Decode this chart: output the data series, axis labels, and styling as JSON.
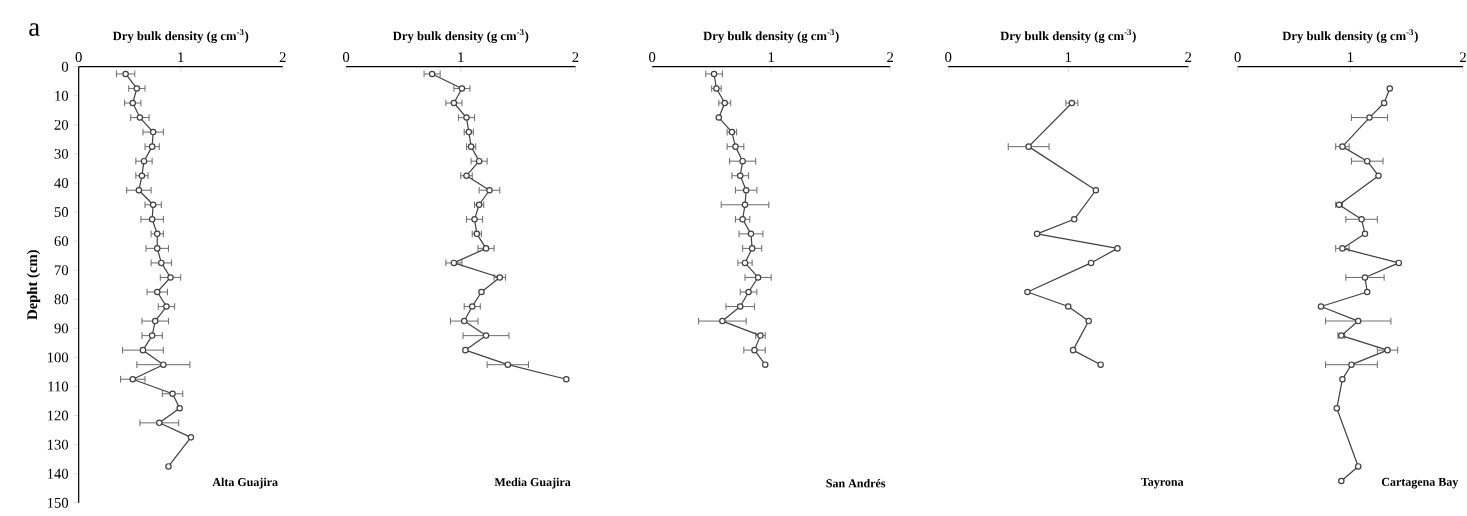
{
  "chart_data": [
    {
      "type": "line",
      "title": "a",
      "xlabel": "Dry bulk density (g cm$^{-3}$)",
      "ylabel": "Depht (cm)",
      "annotations": [
        "Alta Guajira"
      ],
      "xlim": [
        0,
        2
      ],
      "xticks": [
        0,
        1,
        2
      ],
      "ylim": [
        150,
        0
      ],
      "yticks": [
        0,
        10,
        20,
        30,
        40,
        50,
        60,
        70,
        80,
        90,
        100,
        110,
        120,
        130,
        140,
        150
      ],
      "marker": "circle",
      "series": [
        {
          "color": "#404040",
          "x": [
            0.46,
            0.57,
            0.53,
            0.6,
            0.73,
            0.72,
            0.64,
            0.62,
            0.59,
            0.73,
            0.72,
            0.77,
            0.77,
            0.81,
            0.9,
            0.77,
            0.86,
            0.75,
            0.72,
            0.63,
            0.83,
            0.53,
            0.92,
            0.99,
            0.79,
            1.1,
            0.88
          ],
          "values": [
            2.5,
            7.5,
            12.5,
            17.5,
            22.5,
            27.5,
            32.5,
            37.5,
            42.5,
            47.5,
            52.5,
            57.5,
            62.5,
            67.5,
            72.5,
            77.5,
            82.5,
            87.5,
            92.5,
            97.5,
            102.5,
            107.5,
            112.5,
            117.5,
            122.5,
            127.5,
            137.5
          ],
          "xerrors": [
            0.09,
            0.08,
            0.08,
            0.09,
            0.1,
            0.07,
            0.08,
            0.06,
            0.12,
            0.08,
            0.11,
            0.06,
            0.11,
            0.1,
            0.1,
            0.1,
            0.08,
            0.13,
            0.1,
            0.2,
            0.26,
            0.12,
            0.1,
            null,
            0.19,
            null,
            null
          ]
        }
      ]
    },
    {
      "type": "line",
      "xlabel": "Dry bulk density (g cm$^{-3}$)",
      "annotations": [
        "Media Guajira"
      ],
      "xlim": [
        0,
        2
      ],
      "xticks": [
        0,
        1,
        2
      ],
      "ylim": [
        150,
        0
      ],
      "tick_labels": "x",
      "marker": "circle",
      "series": [
        {
          "color": "#404040",
          "x": [
            0.75,
            1.01,
            0.94,
            1.05,
            1.07,
            1.09,
            1.16,
            1.05,
            1.25,
            1.16,
            1.12,
            1.14,
            1.22,
            0.94,
            1.34,
            1.18,
            1.1,
            1.03,
            1.22,
            1.04,
            1.41,
            1.92
          ],
          "values": [
            2.5,
            7.5,
            12.5,
            17.5,
            22.5,
            27.5,
            32.5,
            37.5,
            42.5,
            47.5,
            52.5,
            57.5,
            62.5,
            67.5,
            72.5,
            77.5,
            82.5,
            87.5,
            92.5,
            97.5,
            102.5,
            107.5
          ],
          "xerrors": [
            0.07,
            0.07,
            0.07,
            0.07,
            0.04,
            0.04,
            0.07,
            0.05,
            0.09,
            0.04,
            0.07,
            0.04,
            0.07,
            0.07,
            0.05,
            null,
            0.07,
            0.12,
            0.2,
            null,
            0.18,
            null
          ]
        }
      ]
    },
    {
      "type": "line",
      "xlabel": "Dry bulk density (g cm$^{-3}$)",
      "annotations": [
        "San Andrés"
      ],
      "xlim": [
        0,
        2
      ],
      "xticks": [
        0,
        1,
        2
      ],
      "ylim": [
        150,
        0
      ],
      "tick_labels": "x",
      "marker": "circle",
      "series": [
        {
          "color": "#404040",
          "x": [
            0.52,
            0.54,
            0.61,
            0.56,
            0.67,
            0.7,
            0.76,
            0.74,
            0.79,
            0.78,
            0.76,
            0.83,
            0.84,
            0.78,
            0.89,
            0.81,
            0.74,
            0.59,
            0.91,
            0.86,
            0.95
          ],
          "values": [
            2.5,
            7.5,
            12.5,
            17.5,
            22.5,
            27.5,
            32.5,
            37.5,
            42.5,
            47.5,
            52.5,
            57.5,
            62.5,
            67.5,
            72.5,
            77.5,
            82.5,
            87.5,
            92.5,
            97.5,
            102.5
          ],
          "xerrors": [
            0.07,
            0.04,
            0.05,
            null,
            0.04,
            0.07,
            0.11,
            0.07,
            0.09,
            0.2,
            0.06,
            0.1,
            0.08,
            0.06,
            0.11,
            0.07,
            0.12,
            0.2,
            0.04,
            0.09,
            null
          ]
        }
      ]
    },
    {
      "type": "line",
      "xlabel": "Dry bulk density (g cm$^{-3}$)",
      "annotations": [
        "Tayrona"
      ],
      "xlim": [
        0,
        2
      ],
      "xticks": [
        0,
        1,
        2
      ],
      "ylim": [
        150,
        0
      ],
      "tick_labels": "x",
      "marker": "circle",
      "series": [
        {
          "color": "#404040",
          "x": [
            1.03,
            0.67,
            1.23,
            1.05,
            0.74,
            1.41,
            1.19,
            0.66,
            1.0,
            1.17,
            1.04,
            1.27
          ],
          "values": [
            12.5,
            27.5,
            42.5,
            52.5,
            57.5,
            62.5,
            67.5,
            77.5,
            82.5,
            87.5,
            97.5,
            102.5
          ],
          "xerrors": [
            0.05,
            0.17,
            null,
            null,
            null,
            null,
            null,
            null,
            null,
            null,
            null,
            null
          ]
        }
      ]
    },
    {
      "type": "line",
      "xlabel": "Dry bulk density (g cm$^{-3}$)",
      "annotations": [
        "Cartagena Bay"
      ],
      "xlim": [
        0,
        2
      ],
      "xticks": [
        0,
        1,
        2
      ],
      "ylim": [
        150,
        0
      ],
      "tick_labels": "x",
      "marker": "circle",
      "series": [
        {
          "color": "#404040",
          "x": [
            1.35,
            1.3,
            1.17,
            0.93,
            1.15,
            1.25,
            0.9,
            1.1,
            1.13,
            0.93,
            1.43,
            1.13,
            1.15,
            0.74,
            1.07,
            0.92,
            1.33,
            1.01,
            0.93,
            0.88,
            1.07,
            0.92
          ],
          "values": [
            7.5,
            12.5,
            17.5,
            27.5,
            32.5,
            37.5,
            47.5,
            52.5,
            57.5,
            62.5,
            67.5,
            72.5,
            77.5,
            82.5,
            87.5,
            92.5,
            97.5,
            102.5,
            107.5,
            117.5,
            137.5,
            142.5
          ],
          "xerrors": [
            null,
            null,
            0.16,
            0.06,
            0.14,
            null,
            0.03,
            0.14,
            null,
            0.06,
            null,
            0.17,
            null,
            null,
            0.29,
            0.03,
            0.09,
            0.23,
            null,
            null,
            null,
            null
          ]
        }
      ]
    }
  ]
}
